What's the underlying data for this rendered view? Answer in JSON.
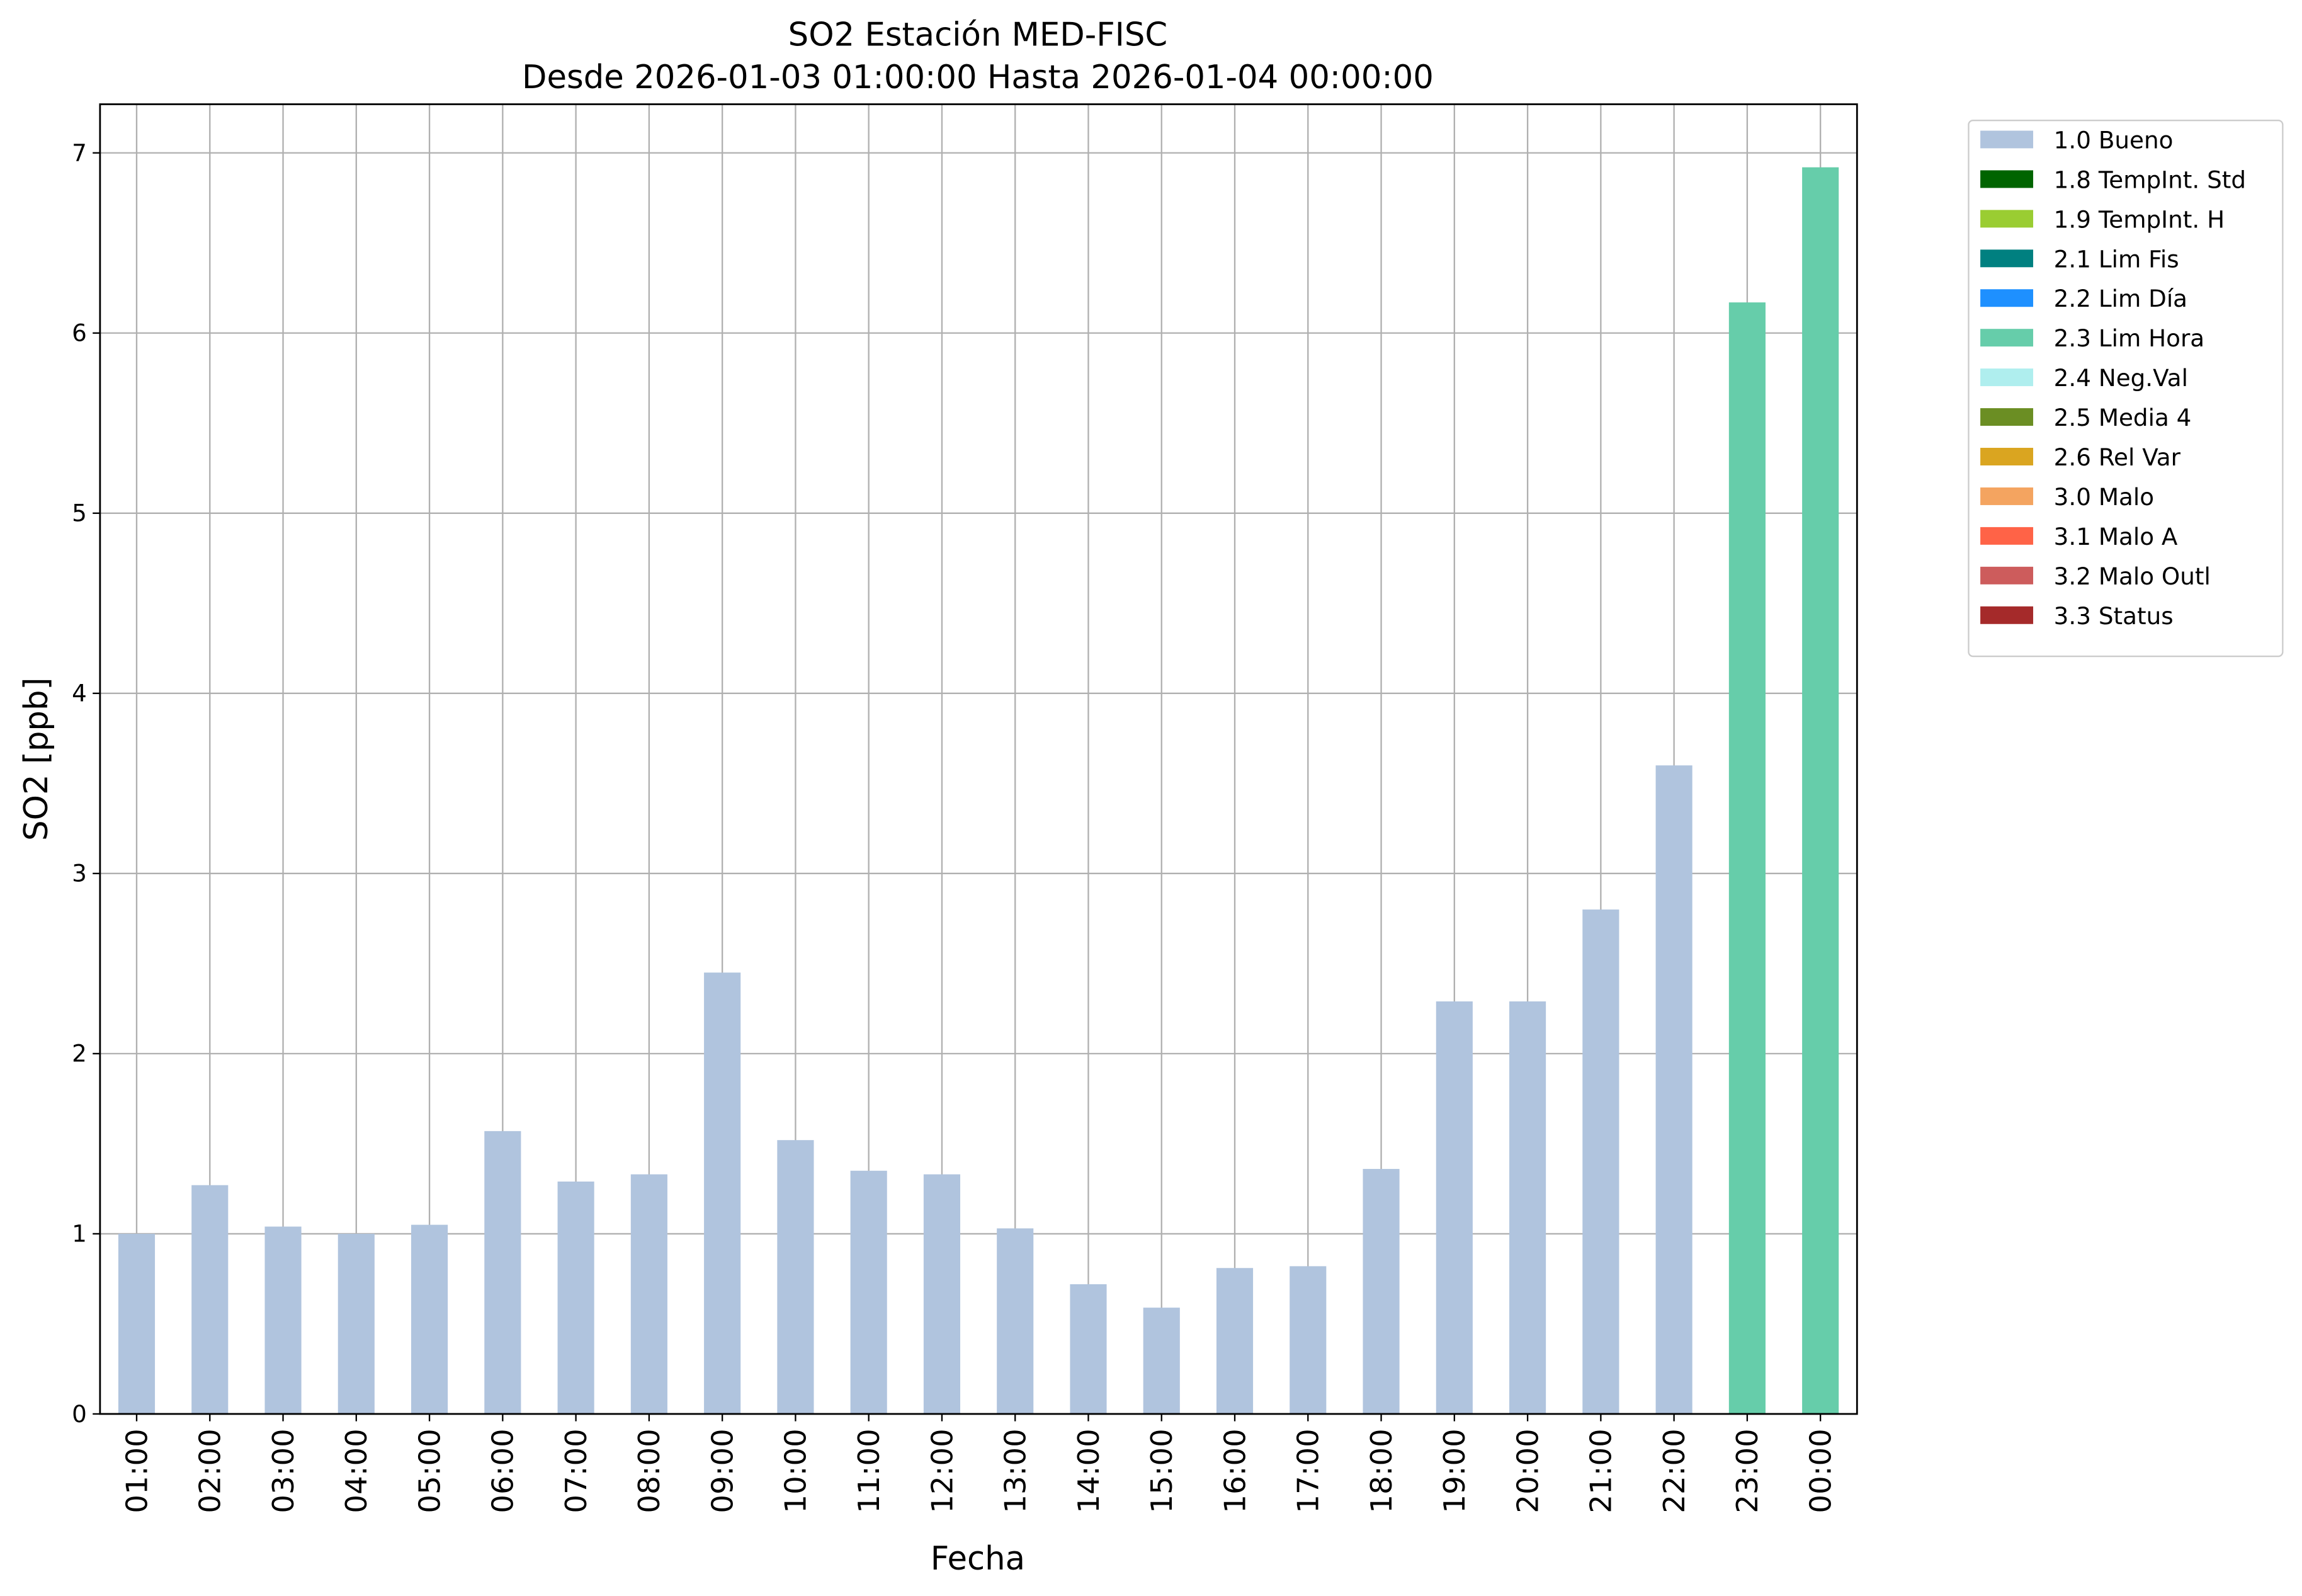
{
  "chart_data": {
    "type": "stacked_bar",
    "title": "SO2 Estación MED-FISC",
    "subtitle": "Desde 2026-01-03 01:00:00 Hasta 2026-01-04 00:00:00",
    "x_label": "Fecha",
    "y_label": "SO2 [ppb]",
    "categories": [
      "01:00",
      "02:00",
      "03:00",
      "04:00",
      "05:00",
      "06:00",
      "07:00",
      "08:00",
      "09:00",
      "10:00",
      "11:00",
      "12:00",
      "13:00",
      "14:00",
      "15:00",
      "16:00",
      "17:00",
      "18:00",
      "19:00",
      "20:00",
      "21:00",
      "22:00",
      "23:00",
      "00:00"
    ],
    "series": [
      {
        "name": "1.0 Bueno",
        "color": "#b0c4de",
        "values": [
          1.0,
          1.27,
          1.04,
          1.0,
          1.05,
          1.57,
          1.29,
          1.33,
          2.45,
          1.52,
          1.35,
          1.33,
          1.03,
          0.72,
          0.59,
          0.81,
          0.82,
          1.36,
          2.29,
          2.29,
          2.8,
          3.6,
          null,
          null
        ]
      },
      {
        "name": "1.8 TempInt. Std",
        "color": "#006400",
        "values": [
          null,
          null,
          null,
          null,
          null,
          null,
          null,
          null,
          null,
          null,
          null,
          null,
          null,
          null,
          null,
          null,
          null,
          null,
          null,
          null,
          null,
          null,
          null,
          null
        ]
      },
      {
        "name": "1.9 TempInt. H",
        "color": "#9acd32",
        "values": [
          null,
          null,
          null,
          null,
          null,
          null,
          null,
          null,
          null,
          null,
          null,
          null,
          null,
          null,
          null,
          null,
          null,
          null,
          null,
          null,
          null,
          null,
          null,
          null
        ]
      },
      {
        "name": "2.1 Lim Fis",
        "color": "#008080",
        "values": [
          null,
          null,
          null,
          null,
          null,
          null,
          null,
          null,
          null,
          null,
          null,
          null,
          null,
          null,
          null,
          null,
          null,
          null,
          null,
          null,
          null,
          null,
          null,
          null
        ]
      },
      {
        "name": "2.2 Lim Día",
        "color": "#1e90ff",
        "values": [
          null,
          null,
          null,
          null,
          null,
          null,
          null,
          null,
          null,
          null,
          null,
          null,
          null,
          null,
          null,
          null,
          null,
          null,
          null,
          null,
          null,
          null,
          null,
          null
        ]
      },
      {
        "name": "2.3 Lim Hora",
        "color": "#66cdaa",
        "values": [
          null,
          null,
          null,
          null,
          null,
          null,
          null,
          null,
          null,
          null,
          null,
          null,
          null,
          null,
          null,
          null,
          null,
          null,
          null,
          null,
          null,
          null,
          6.17,
          6.92
        ]
      },
      {
        "name": "2.4 Neg.Val",
        "color": "#afeeee",
        "values": [
          null,
          null,
          null,
          null,
          null,
          null,
          null,
          null,
          null,
          null,
          null,
          null,
          null,
          null,
          null,
          null,
          null,
          null,
          null,
          null,
          null,
          null,
          null,
          null
        ]
      },
      {
        "name": "2.5 Media 4",
        "color": "#6b8e23",
        "values": [
          null,
          null,
          null,
          null,
          null,
          null,
          null,
          null,
          null,
          null,
          null,
          null,
          null,
          null,
          null,
          null,
          null,
          null,
          null,
          null,
          null,
          null,
          null,
          null
        ]
      },
      {
        "name": "2.6 Rel Var",
        "color": "#daa520",
        "values": [
          null,
          null,
          null,
          null,
          null,
          null,
          null,
          null,
          null,
          null,
          null,
          null,
          null,
          null,
          null,
          null,
          null,
          null,
          null,
          null,
          null,
          null,
          null,
          null
        ]
      },
      {
        "name": "3.0 Malo",
        "color": "#f4a460",
        "values": [
          null,
          null,
          null,
          null,
          null,
          null,
          null,
          null,
          null,
          null,
          null,
          null,
          null,
          null,
          null,
          null,
          null,
          null,
          null,
          null,
          null,
          null,
          null,
          null
        ]
      },
      {
        "name": "3.1 Malo A",
        "color": "#ff6347",
        "values": [
          null,
          null,
          null,
          null,
          null,
          null,
          null,
          null,
          null,
          null,
          null,
          null,
          null,
          null,
          null,
          null,
          null,
          null,
          null,
          null,
          null,
          null,
          null,
          null
        ]
      },
      {
        "name": "3.2 Malo Outl",
        "color": "#cd5c5c",
        "values": [
          null,
          null,
          null,
          null,
          null,
          null,
          null,
          null,
          null,
          null,
          null,
          null,
          null,
          null,
          null,
          null,
          null,
          null,
          null,
          null,
          null,
          null,
          null,
          null
        ]
      },
      {
        "name": "3.3 Status",
        "color": "#a52a2a",
        "values": [
          null,
          null,
          null,
          null,
          null,
          null,
          null,
          null,
          null,
          null,
          null,
          null,
          null,
          null,
          null,
          null,
          null,
          null,
          null,
          null,
          null,
          null,
          null,
          null
        ]
      }
    ],
    "ylim": [
      0,
      7.27
    ],
    "yticks": [
      0,
      1,
      2,
      3,
      4,
      5,
      6,
      7
    ],
    "grid": true,
    "legend": "outside-right"
  }
}
